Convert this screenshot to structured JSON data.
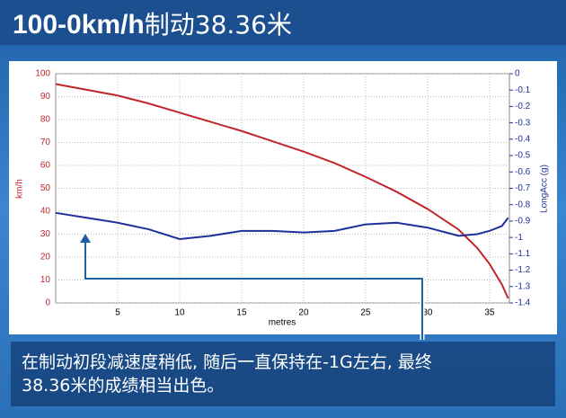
{
  "chart_data": {
    "type": "line",
    "title": "100-0km/h",
    "subtitle": "制动38.36米",
    "xlabel": "metres",
    "ylabel": "km/h",
    "y2label": "LongAcc (g)",
    "x": [
      0,
      2.5,
      5,
      7.5,
      10,
      12.5,
      15,
      17.5,
      20,
      22.5,
      25,
      27.5,
      30,
      32.5,
      34,
      35,
      36,
      36.5
    ],
    "series": [
      {
        "color": "#c0262a",
        "values": [
          95.5,
          93,
          90.5,
          87,
          83,
          79,
          75,
          70.5,
          66,
          61,
          55,
          48.5,
          41,
          32,
          24,
          17,
          8,
          2
        ]
      },
      {
        "color": "#1f2f9c",
        "axis": "y2",
        "values": [
          -0.85,
          -0.88,
          -0.91,
          -0.95,
          -1.01,
          -0.99,
          -0.96,
          -0.96,
          -0.97,
          -0.96,
          -0.92,
          -0.91,
          -0.94,
          -0.99,
          -0.98,
          -0.96,
          -0.93,
          -0.88
        ]
      }
    ],
    "xlim": [
      0,
      36.6
    ],
    "xticks": [
      5,
      10,
      15,
      20,
      25,
      30,
      35
    ],
    "ylim": [
      0,
      100
    ],
    "yticks": [
      0,
      10,
      20,
      30,
      40,
      50,
      60,
      70,
      80,
      90,
      100
    ],
    "y2lim": [
      -1.4,
      0
    ],
    "y2ticks": [
      0,
      -0.1,
      -0.2,
      -0.3,
      -0.4,
      -0.5,
      -0.6,
      -0.7,
      -0.8,
      -0.9,
      -1,
      -1.1,
      -1.2,
      -1.3,
      -1.4
    ],
    "grid": true,
    "annotation": [
      "在制动初段减速度稍低, 随后一直保持在-1G左右, 最终",
      "38.36米的成绩相当出色。"
    ]
  }
}
